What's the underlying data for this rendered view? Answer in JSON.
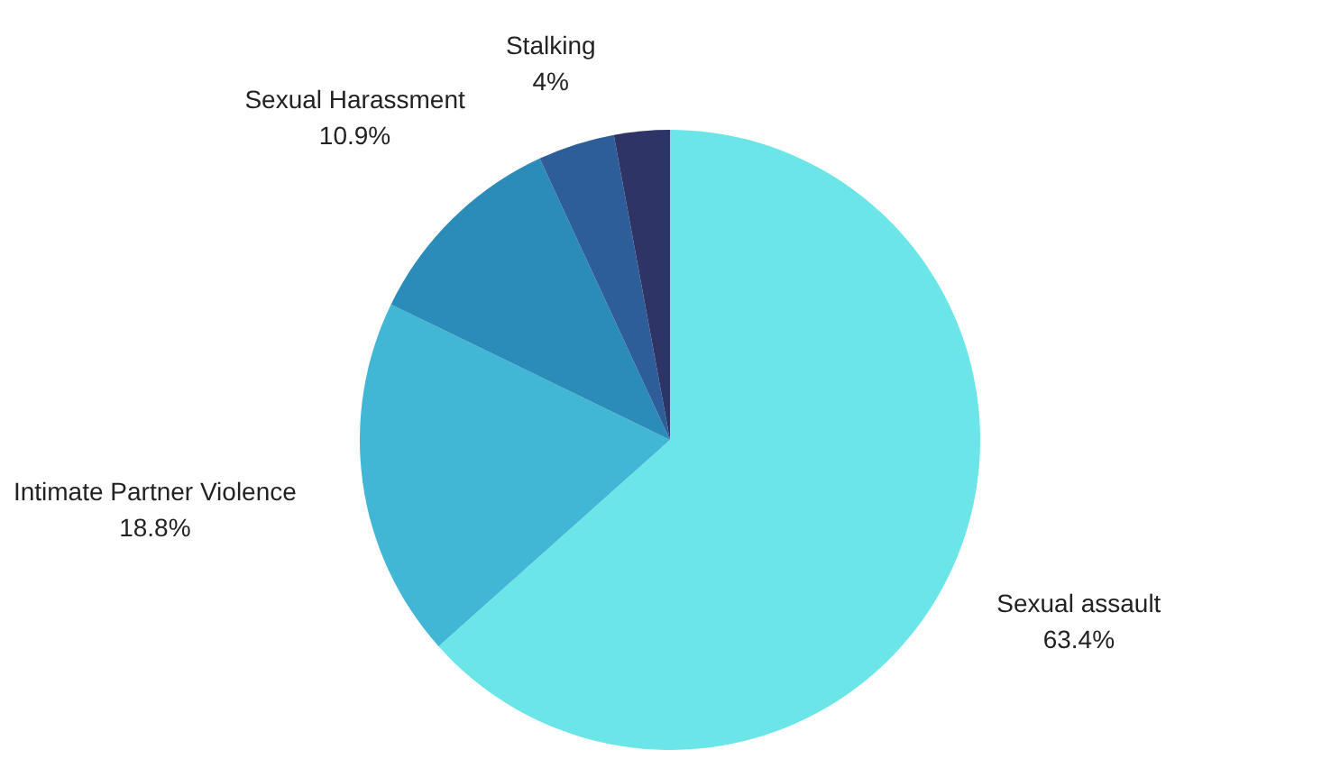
{
  "chart_data": {
    "type": "pie",
    "categories": [
      "Sexual assault",
      "Intimate Partner Violence",
      "Sexual Harassment",
      "Stalking",
      null
    ],
    "values": [
      63.4,
      18.8,
      10.9,
      4,
      2.9
    ],
    "value_labels": [
      "63.4%",
      "18.8%",
      "10.9%",
      "4%",
      null
    ],
    "colors": [
      "#6ce5e8",
      "#42b6d5",
      "#2b8bb9",
      "#2e5e9a",
      "#2f3466"
    ]
  }
}
